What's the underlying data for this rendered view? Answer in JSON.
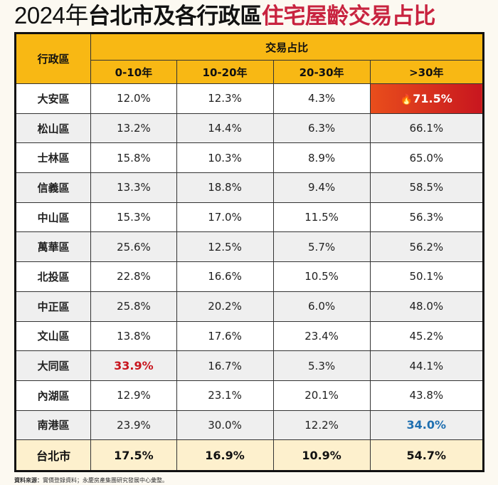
{
  "title": {
    "year": "2024年",
    "part1": "台北市及各行政區",
    "part2": "住宅屋齡交易占比"
  },
  "chart_data": {
    "type": "table",
    "row_header": "行政區",
    "group_header": "交易占比",
    "columns": [
      "0-10年",
      "10-20年",
      "20-30年",
      ">30年"
    ],
    "rows": [
      {
        "district": "大安區",
        "values": [
          "12.0%",
          "12.3%",
          "4.3%",
          "71.5%"
        ]
      },
      {
        "district": "松山區",
        "values": [
          "13.2%",
          "14.4%",
          "6.3%",
          "66.1%"
        ]
      },
      {
        "district": "士林區",
        "values": [
          "15.8%",
          "10.3%",
          "8.9%",
          "65.0%"
        ]
      },
      {
        "district": "信義區",
        "values": [
          "13.3%",
          "18.8%",
          "9.4%",
          "58.5%"
        ]
      },
      {
        "district": "中山區",
        "values": [
          "15.3%",
          "17.0%",
          "11.5%",
          "56.3%"
        ]
      },
      {
        "district": "萬華區",
        "values": [
          "25.6%",
          "12.5%",
          "5.7%",
          "56.2%"
        ]
      },
      {
        "district": "北投區",
        "values": [
          "22.8%",
          "16.6%",
          "10.5%",
          "50.1%"
        ]
      },
      {
        "district": "中正區",
        "values": [
          "25.8%",
          "20.2%",
          "6.0%",
          "48.0%"
        ]
      },
      {
        "district": "文山區",
        "values": [
          "13.8%",
          "17.6%",
          "23.4%",
          "45.2%"
        ]
      },
      {
        "district": "大同區",
        "values": [
          "33.9%",
          "16.7%",
          "5.3%",
          "44.1%"
        ]
      },
      {
        "district": "內湖區",
        "values": [
          "12.9%",
          "23.1%",
          "20.1%",
          "43.8%"
        ]
      },
      {
        "district": "南港區",
        "values": [
          "23.9%",
          "30.0%",
          "12.2%",
          "34.0%"
        ]
      }
    ],
    "total": {
      "district": "台北市",
      "values": [
        "17.5%",
        "16.9%",
        "10.9%",
        "54.7%"
      ]
    },
    "highlights": {
      "max_over30": {
        "row": 0,
        "col": 3,
        "icon": "fire-icon",
        "color": "#d42a1e"
      },
      "max_0_10": {
        "row": 9,
        "col": 0,
        "color": "#c8161f"
      },
      "min_over30": {
        "row": 11,
        "col": 3,
        "color": "#1f6fb0"
      }
    }
  },
  "source": {
    "label": "資料來源：",
    "text": "實價登錄資料；永慶房產集團研究發展中心彙整。"
  },
  "colors": {
    "header": "#f8b814",
    "title_accent": "#c8233f",
    "total_row": "#fdf0cd"
  }
}
